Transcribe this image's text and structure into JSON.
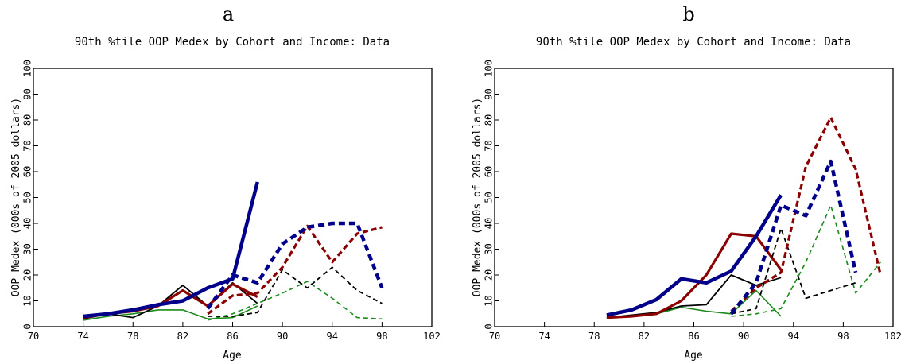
{
  "chart_data": [
    {
      "type": "line",
      "panel": "a",
      "title": "90th %tile OOP Medex by Cohort and Income:  Data",
      "xlabel": "Age",
      "ylabel": "OOP Medex (000s of 2005 dollars)",
      "xlim": [
        70,
        102
      ],
      "ylim": [
        0,
        100
      ],
      "xticks": [
        70,
        74,
        78,
        82,
        86,
        90,
        94,
        98,
        102
      ],
      "yticks": [
        0,
        10,
        20,
        30,
        40,
        50,
        60,
        70,
        80,
        90,
        100
      ],
      "series": [
        {
          "color": "#1a8a1a",
          "width": 1.6,
          "dash": "",
          "x": [
            74,
            76,
            78,
            80,
            82,
            84,
            86,
            88
          ],
          "y": [
            2.5,
            4,
            5,
            6.5,
            6.5,
            3,
            3.5,
            8
          ]
        },
        {
          "color": "#000000",
          "width": 1.8,
          "dash": "",
          "x": [
            74,
            76,
            78,
            80,
            82,
            84,
            86,
            88
          ],
          "y": [
            3,
            5,
            3.5,
            8,
            16,
            8,
            17,
            9
          ]
        },
        {
          "color": "#8b0000",
          "width": 3.2,
          "dash": "",
          "x": [
            74,
            76,
            78,
            80,
            82,
            84,
            86,
            88
          ],
          "y": [
            3.5,
            5,
            6,
            8,
            14,
            8,
            16.5,
            11.5
          ]
        },
        {
          "color": "#00008b",
          "width": 4.5,
          "dash": "",
          "x": [
            74,
            76,
            78,
            80,
            82,
            84,
            86,
            88
          ],
          "y": [
            4,
            5,
            6.5,
            8.5,
            10,
            15,
            18.5,
            56
          ]
        },
        {
          "color": "#1a8a1a",
          "width": 1.6,
          "dash": "6,4",
          "x": [
            84,
            86,
            88,
            90,
            92,
            94,
            96,
            98
          ],
          "y": [
            2.5,
            5,
            9,
            13,
            17.5,
            11,
            3.5,
            3
          ]
        },
        {
          "color": "#000000",
          "width": 1.8,
          "dash": "6,4",
          "x": [
            84,
            86,
            88,
            90,
            92,
            94,
            96,
            98
          ],
          "y": [
            4,
            4,
            5.5,
            22,
            15,
            23,
            14,
            9
          ]
        },
        {
          "color": "#8b0000",
          "width": 3.2,
          "dash": "7,4",
          "x": [
            84,
            86,
            88,
            90,
            92,
            94,
            96,
            98
          ],
          "y": [
            5,
            12,
            13,
            23,
            39,
            25,
            36,
            38.5
          ]
        },
        {
          "color": "#00008b",
          "width": 4.5,
          "dash": "8,5",
          "x": [
            84,
            86,
            88,
            90,
            92,
            94,
            96,
            98
          ],
          "y": [
            7,
            20,
            17,
            32,
            38.5,
            40,
            40,
            15
          ]
        }
      ]
    },
    {
      "type": "line",
      "panel": "b",
      "title": "90th %tile OOP Medex by Cohort and Income:  Data",
      "xlabel": "Age",
      "ylabel": "OOP Medex (000s of 2005 dollars)",
      "xlim": [
        70,
        102
      ],
      "ylim": [
        0,
        100
      ],
      "xticks": [
        70,
        74,
        78,
        82,
        86,
        90,
        94,
        98,
        102
      ],
      "yticks": [
        0,
        10,
        20,
        30,
        40,
        50,
        60,
        70,
        80,
        90,
        100
      ],
      "series": [
        {
          "color": "#1a8a1a",
          "width": 1.6,
          "dash": "",
          "x": [
            79,
            81,
            83,
            85,
            87,
            89,
            91,
            93
          ],
          "y": [
            3.5,
            4,
            5,
            7.5,
            6,
            5,
            14,
            4
          ]
        },
        {
          "color": "#000000",
          "width": 1.8,
          "dash": "",
          "x": [
            79,
            81,
            83,
            85,
            87,
            89,
            91,
            93
          ],
          "y": [
            3.5,
            4.5,
            5.5,
            8,
            8.5,
            20,
            16,
            19
          ]
        },
        {
          "color": "#8b0000",
          "width": 3.2,
          "dash": "",
          "x": [
            79,
            81,
            83,
            85,
            87,
            89,
            91,
            93
          ],
          "y": [
            3.5,
            4,
            5,
            10,
            20,
            36,
            35,
            22
          ]
        },
        {
          "color": "#00008b",
          "width": 4.5,
          "dash": "",
          "x": [
            79,
            81,
            83,
            85,
            87,
            89,
            91,
            93
          ],
          "y": [
            4.5,
            6.5,
            10.5,
            18.5,
            17,
            21.5,
            35,
            51
          ]
        },
        {
          "color": "#1a8a1a",
          "width": 1.6,
          "dash": "6,4",
          "x": [
            89,
            91,
            93,
            95,
            97,
            99,
            101
          ],
          "y": [
            4,
            5,
            7,
            25,
            47,
            13,
            25
          ]
        },
        {
          "color": "#000000",
          "width": 1.8,
          "dash": "6,4",
          "x": [
            89,
            91,
            93,
            95,
            97,
            99
          ],
          "y": [
            5,
            7,
            38,
            11,
            14,
            17
          ]
        },
        {
          "color": "#8b0000",
          "width": 3.2,
          "dash": "7,4",
          "x": [
            89,
            91,
            93,
            95,
            97,
            99,
            101
          ],
          "y": [
            6,
            15,
            21,
            62,
            81,
            61,
            20
          ]
        },
        {
          "color": "#00008b",
          "width": 4.5,
          "dash": "8,5",
          "x": [
            89,
            91,
            93,
            95,
            97,
            99
          ],
          "y": [
            5,
            17,
            47,
            43,
            64,
            21
          ]
        }
      ]
    }
  ]
}
